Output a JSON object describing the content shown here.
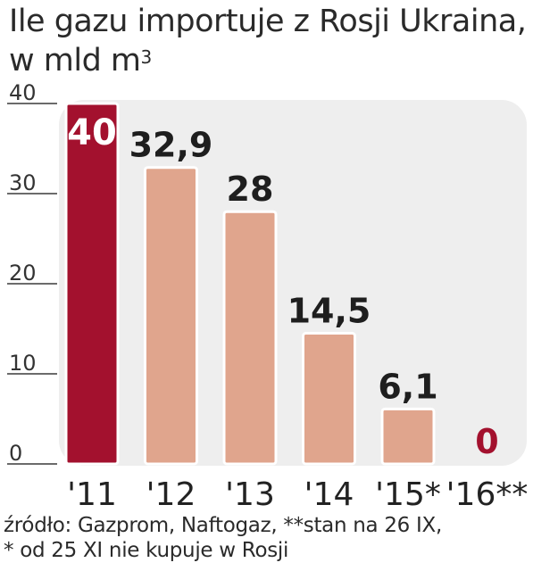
{
  "title": "Ile gazu importuje z Rosji Ukraina,",
  "unit": "w mld m",
  "unit_sup": "3",
  "source_line1": "źródło: Gazprom, Naftogaz, **stan na 26 IX,",
  "source_line2": "* od 25 XI nie kupuje w Rosji",
  "colors": {
    "highlight": "#a3112e",
    "bar": "#e0a58d",
    "plot_bg": "#eeeeee",
    "zero_label": "#a3112e"
  },
  "chart_data": {
    "type": "bar",
    "categories": [
      "'11",
      "'12",
      "'13",
      "'14",
      "'15*",
      "'16**"
    ],
    "values": [
      40,
      32.9,
      28,
      14.5,
      6.1,
      0
    ],
    "data_labels": [
      "40",
      "32,9",
      "28",
      "14,5",
      "6,1",
      "0"
    ],
    "highlight_index": 0,
    "yticks": [
      0,
      10,
      20,
      30,
      40
    ],
    "ylim": [
      0,
      40
    ],
    "grid": false
  }
}
